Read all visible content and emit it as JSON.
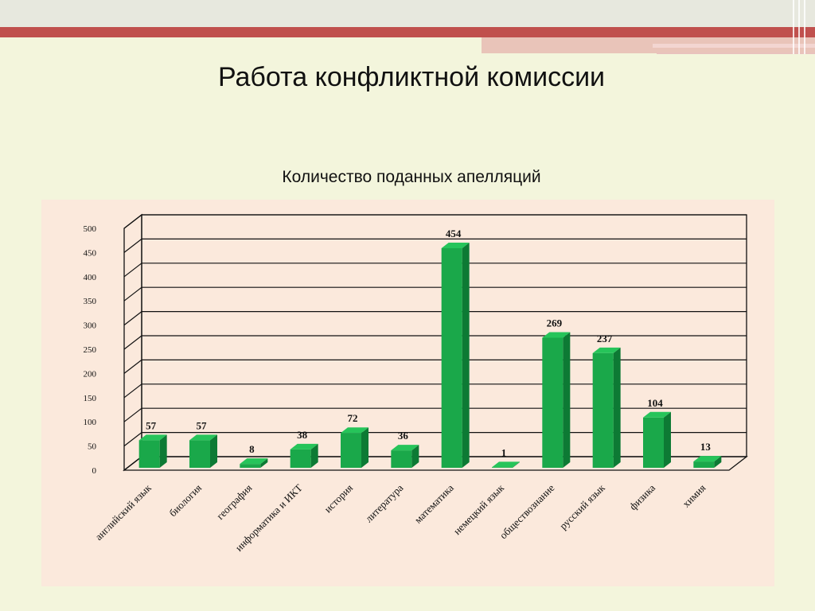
{
  "slide": {
    "title": "Работа конфликтной комиссии",
    "subtitle": "Количество поданных апелляций"
  },
  "colors": {
    "bar_front": "#1aa84a",
    "bar_side": "#0d7a34",
    "bar_top": "#26c45a",
    "accent_red": "#c0504d",
    "plot_background": "#fbe9dc"
  },
  "chart_data": {
    "type": "bar",
    "title": "Количество поданных апелляций",
    "categories": [
      "английский язык",
      "биология",
      "география",
      "информатика и ИКТ",
      "история",
      "литература",
      "математика",
      "немецкий язык",
      "обществознание",
      "русский язык",
      "физика",
      "химия"
    ],
    "values": [
      57,
      57,
      8,
      38,
      72,
      36,
      454,
      1,
      269,
      237,
      104,
      13
    ],
    "ylim": [
      0,
      500
    ],
    "yticks": [
      0,
      50,
      100,
      150,
      200,
      250,
      300,
      350,
      400,
      450,
      500
    ],
    "grid": true,
    "legend": "none",
    "style": "3d"
  }
}
